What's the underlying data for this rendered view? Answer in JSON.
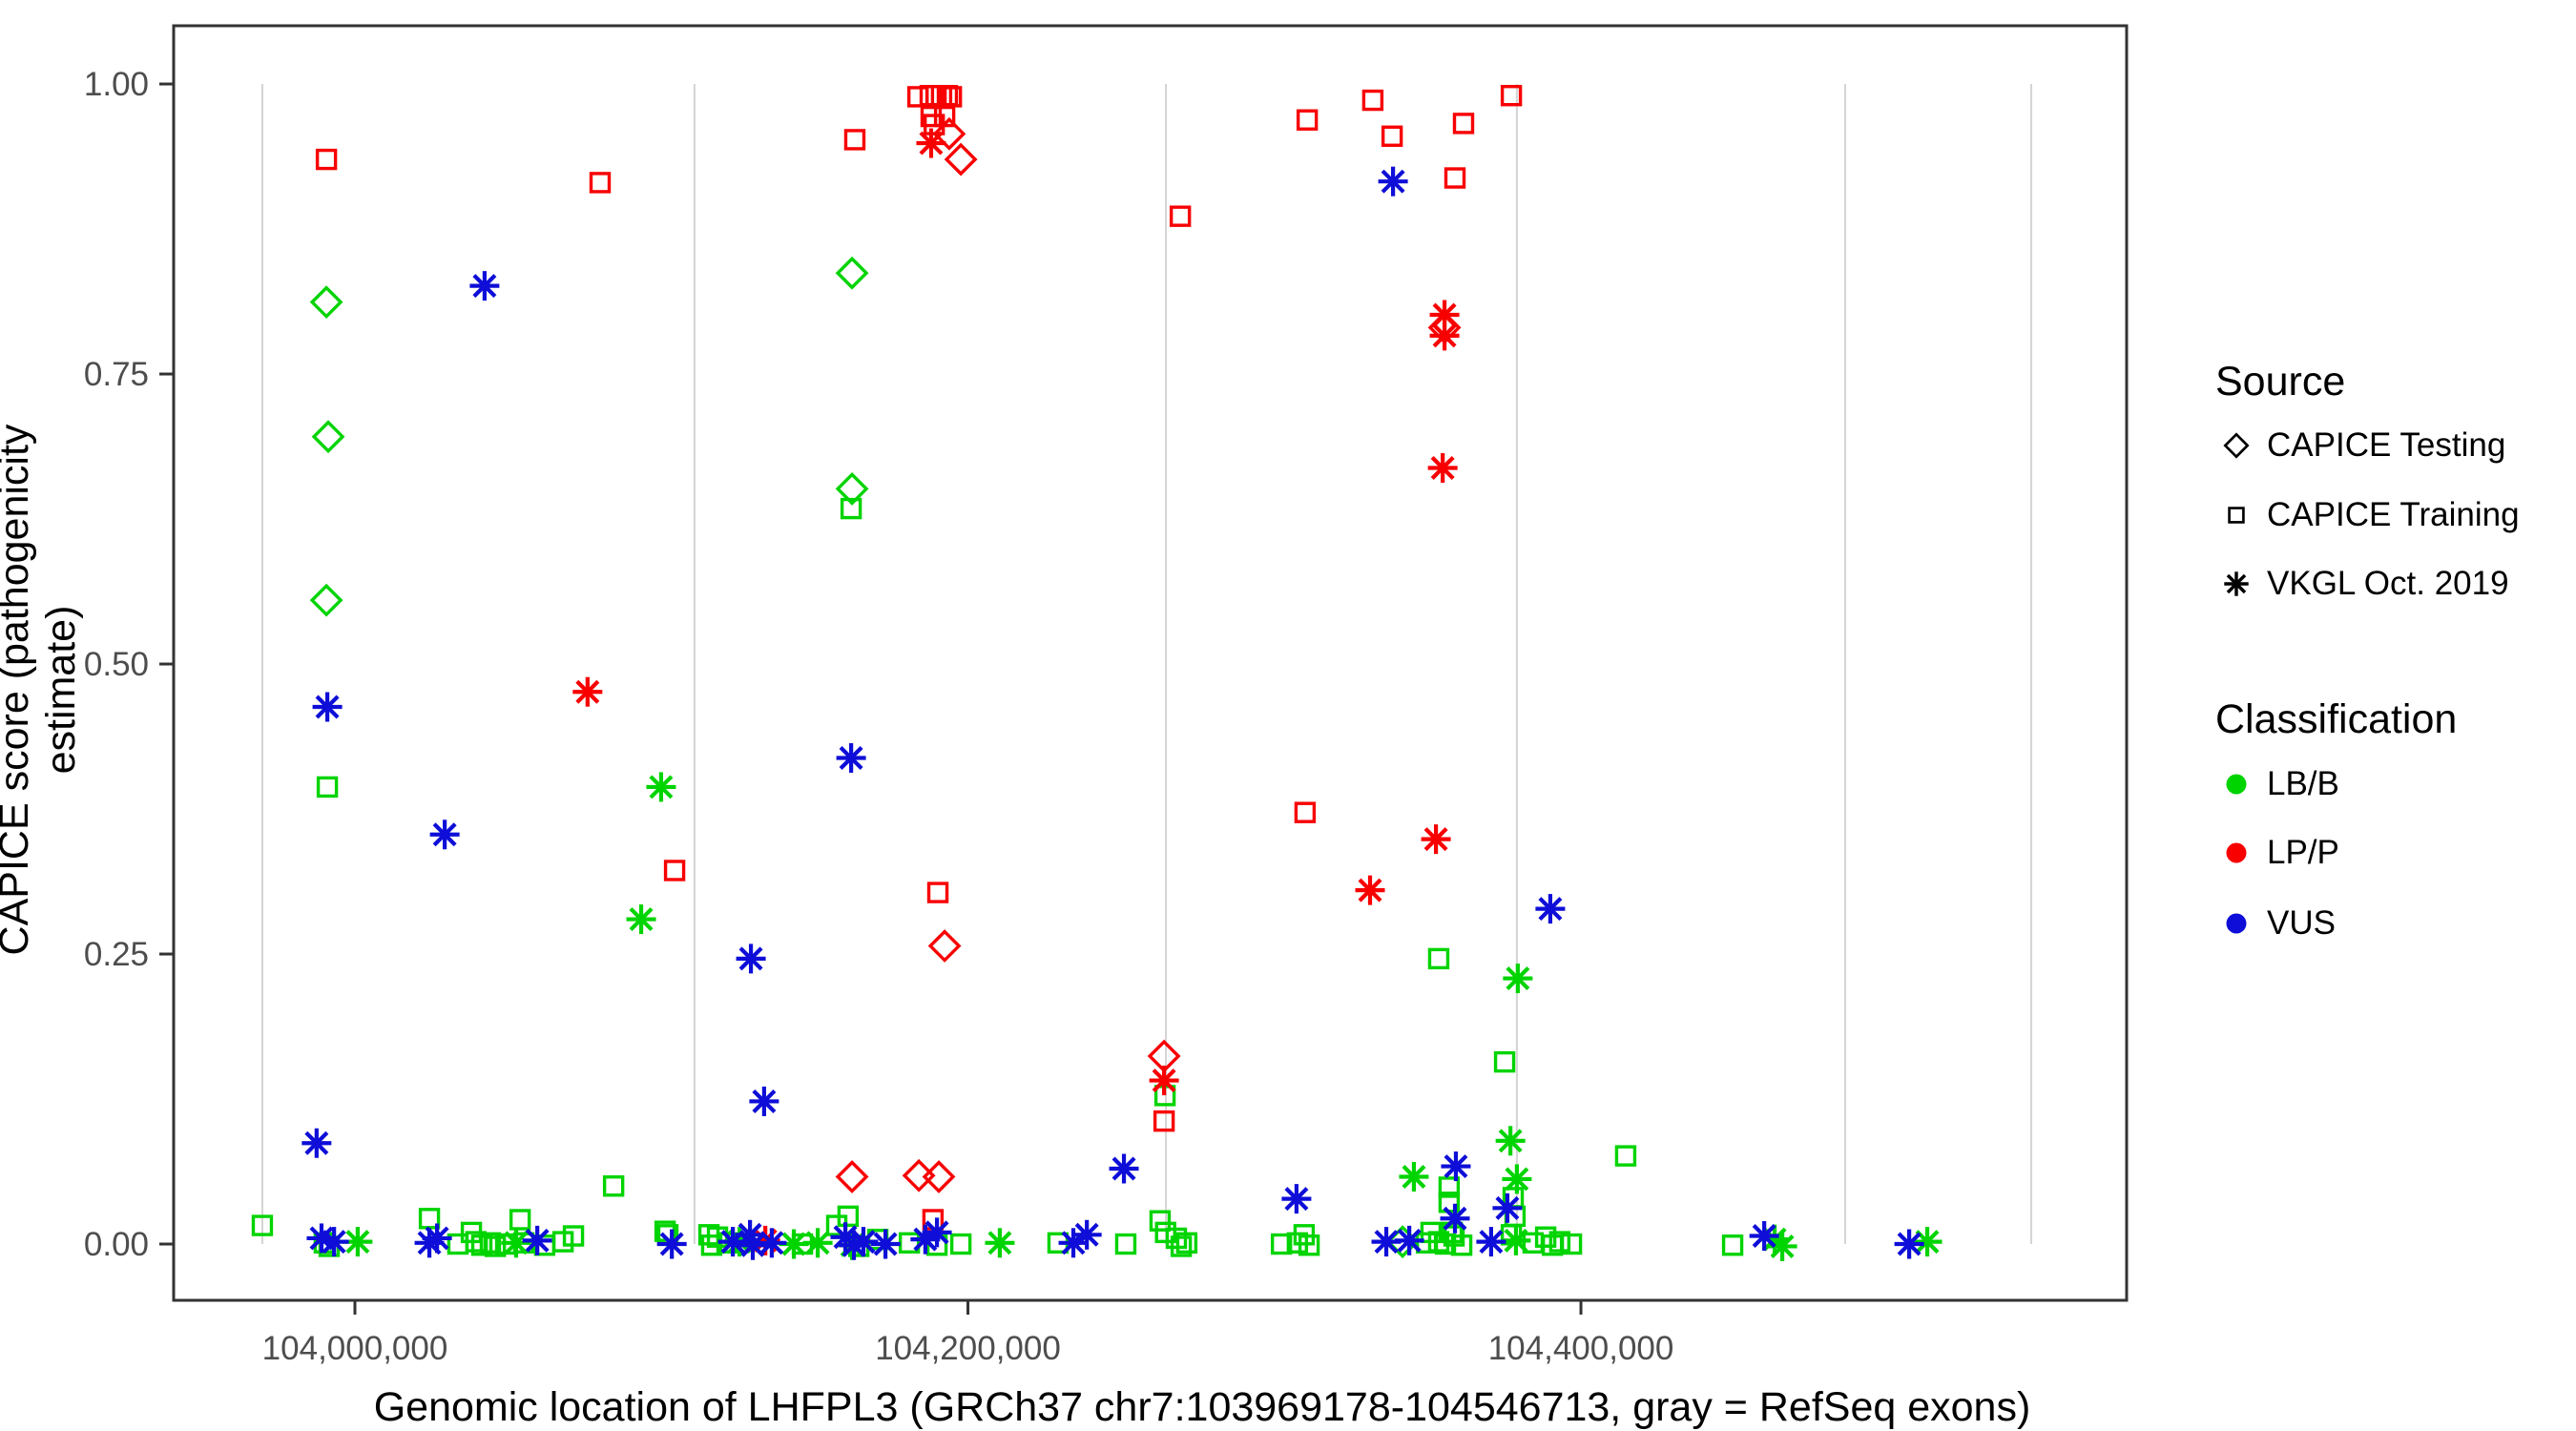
{
  "figure": {
    "background": "#ffffff",
    "text_color": "#000000",
    "tick_text_color": "#4d4d4d",
    "axis_line_color": "#333333",
    "exon_line_color": "#d4d4d4"
  },
  "legend": {
    "source": {
      "title": "Source",
      "items": [
        {
          "label": "CAPICE Testing",
          "icon": "diamond-icon",
          "marker": "testing"
        },
        {
          "label": "CAPICE Training",
          "icon": "square-icon",
          "marker": "training"
        },
        {
          "label": "VKGL Oct. 2019",
          "icon": "asterisk-icon",
          "marker": "vkgl"
        }
      ]
    },
    "classification": {
      "title": "Classification",
      "items": [
        {
          "label": "LB/B",
          "icon": "circle-icon",
          "color": "#00d400"
        },
        {
          "label": "LP/P",
          "icon": "circle-icon",
          "color": "#f80000"
        },
        {
          "label": "VUS",
          "icon": "circle-icon",
          "color": "#0e0ed8"
        }
      ]
    }
  },
  "chart_data": {
    "type": "scatter",
    "title": "",
    "xlabel": "Genomic location of LHFPL3 (GRCh37 chr7:103969178-104546713, gray = RefSeq exons)",
    "ylabel": "CAPICE score (pathogenicity estimate)",
    "xlim": [
      103940856,
      104578040
    ],
    "ylim": [
      -0.0485,
      1.0502
    ],
    "x_ticks": [
      {
        "value": 104000000,
        "label": "104,000,000"
      },
      {
        "value": 104200000,
        "label": "104,200,000"
      },
      {
        "value": 104400000,
        "label": "104,400,000"
      }
    ],
    "y_ticks": [
      {
        "value": 0.0,
        "label": "0.00"
      },
      {
        "value": 0.25,
        "label": "0.25"
      },
      {
        "value": 0.5,
        "label": "0.50"
      },
      {
        "value": 0.75,
        "label": "0.75"
      },
      {
        "value": 1.0,
        "label": "1.00"
      }
    ],
    "grid": false,
    "legend_position": "right",
    "refseq_exon_lines_bp": [
      103969800,
      104110800,
      104264600,
      104379100,
      104486200,
      104546900
    ],
    "colors": {
      "LB/B": "#00d400",
      "LP/P": "#f80000",
      "VUS": "#0e0ed8"
    },
    "point_schema": [
      "position_bp",
      "capice_score",
      "source(T=CAPICE Testing diamond, R=CAPICE Training square, V=VKGL Oct. 2019 asterisk)",
      "classification(B=LB/B, P=LP/P, U=VUS)"
    ],
    "points": [
      [
        103969800,
        0.016,
        "R",
        "B"
      ],
      [
        103990000,
        0.001,
        "R",
        "B"
      ],
      [
        103991600,
        -0.002,
        "R",
        "B"
      ],
      [
        103991000,
        0.394,
        "R",
        "B"
      ],
      [
        104024300,
        0.022,
        "R",
        "B"
      ],
      [
        104033600,
        0.0,
        "R",
        "B"
      ],
      [
        104038000,
        0.01,
        "R",
        "B"
      ],
      [
        104039500,
        0.002,
        "R",
        "B"
      ],
      [
        104041400,
        -0.001,
        "R",
        "B"
      ],
      [
        104044200,
        0.001,
        "R",
        "B"
      ],
      [
        104045800,
        -0.002,
        "R",
        "B"
      ],
      [
        104049200,
        0.0,
        "R",
        "B"
      ],
      [
        104053900,
        0.021,
        "R",
        "B"
      ],
      [
        104055100,
        0.001,
        "R",
        "B"
      ],
      [
        104061900,
        -0.001,
        "R",
        "B"
      ],
      [
        104067900,
        0.002,
        "R",
        "B"
      ],
      [
        104071300,
        0.007,
        "R",
        "B"
      ],
      [
        104084400,
        0.05,
        "R",
        "B"
      ],
      [
        104101200,
        0.011,
        "R",
        "B"
      ],
      [
        104102100,
        0.008,
        "R",
        "B"
      ],
      [
        104115500,
        0.008,
        "R",
        "B"
      ],
      [
        104116400,
        -0.001,
        "R",
        "B"
      ],
      [
        104118300,
        0.006,
        "R",
        "B"
      ],
      [
        104121400,
        0.001,
        "R",
        "B"
      ],
      [
        104146000,
        0.0,
        "R",
        "B"
      ],
      [
        104157200,
        0.016,
        "R",
        "B"
      ],
      [
        104160900,
        0.024,
        "R",
        "B"
      ],
      [
        104161900,
        0.634,
        "R",
        "B"
      ],
      [
        104164400,
        -0.002,
        "R",
        "B"
      ],
      [
        104170600,
        0.004,
        "R",
        "B"
      ],
      [
        104180900,
        0.001,
        "R",
        "B"
      ],
      [
        104189900,
        -0.001,
        "R",
        "B"
      ],
      [
        104197700,
        0.0,
        "R",
        "B"
      ],
      [
        104229400,
        0.001,
        "R",
        "B"
      ],
      [
        104251500,
        0.0,
        "R",
        "B"
      ],
      [
        104262700,
        0.02,
        "R",
        "B"
      ],
      [
        104264300,
        0.128,
        "R",
        "B"
      ],
      [
        104264500,
        0.01,
        "R",
        "B"
      ],
      [
        104268000,
        0.005,
        "R",
        "B"
      ],
      [
        104269600,
        -0.002,
        "R",
        "B"
      ],
      [
        104271400,
        0.001,
        "R",
        "B"
      ],
      [
        104302300,
        0.0,
        "R",
        "B"
      ],
      [
        104307500,
        0.001,
        "R",
        "B"
      ],
      [
        104309700,
        0.008,
        "R",
        "B"
      ],
      [
        104311300,
        -0.001,
        "R",
        "B"
      ],
      [
        104349600,
        0.001,
        "R",
        "B"
      ],
      [
        104351100,
        0.01,
        "R",
        "B"
      ],
      [
        104353600,
        0.246,
        "R",
        "B"
      ],
      [
        104353600,
        0.002,
        "R",
        "B"
      ],
      [
        104355800,
        0.0,
        "R",
        "B"
      ],
      [
        104357000,
        0.049,
        "R",
        "B"
      ],
      [
        104357000,
        0.036,
        "R",
        "B"
      ],
      [
        104358000,
        0.01,
        "R",
        "B"
      ],
      [
        104358600,
        0.007,
        "R",
        "B"
      ],
      [
        104361100,
        -0.001,
        "R",
        "B"
      ],
      [
        104375100,
        0.157,
        "R",
        "B"
      ],
      [
        104377300,
        0.008,
        "R",
        "B"
      ],
      [
        104377900,
        0.04,
        "R",
        "B"
      ],
      [
        104378500,
        0.024,
        "R",
        "B"
      ],
      [
        104384400,
        0.001,
        "R",
        "B"
      ],
      [
        104388500,
        0.006,
        "R",
        "B"
      ],
      [
        104390700,
        -0.001,
        "R",
        "B"
      ],
      [
        104393100,
        0.002,
        "R",
        "B"
      ],
      [
        104396900,
        0.0,
        "R",
        "B"
      ],
      [
        104414600,
        0.076,
        "R",
        "B"
      ],
      [
        104449500,
        -0.001,
        "R",
        "B"
      ],
      [
        103990700,
        0.812,
        "T",
        "B"
      ],
      [
        103991300,
        0.696,
        "T",
        "B"
      ],
      [
        103990700,
        0.555,
        "T",
        "B"
      ],
      [
        104162200,
        0.837,
        "T",
        "B"
      ],
      [
        104162200,
        0.651,
        "T",
        "B"
      ],
      [
        104341800,
        0.002,
        "T",
        "B"
      ],
      [
        104000900,
        0.002,
        "V",
        "B"
      ],
      [
        104052600,
        0.001,
        "V",
        "B"
      ],
      [
        104093400,
        0.28,
        "V",
        "B"
      ],
      [
        104099900,
        0.394,
        "V",
        "B"
      ],
      [
        104125500,
        0.002,
        "V",
        "B"
      ],
      [
        104143200,
        0.0,
        "V",
        "B"
      ],
      [
        104151000,
        0.001,
        "V",
        "B"
      ],
      [
        104162200,
        -0.001,
        "V",
        "B"
      ],
      [
        104210400,
        0.001,
        "V",
        "B"
      ],
      [
        104345500,
        0.058,
        "V",
        "B"
      ],
      [
        104377000,
        0.089,
        "V",
        "B"
      ],
      [
        104378800,
        0.003,
        "V",
        "B"
      ],
      [
        104379100,
        0.056,
        "V",
        "B"
      ],
      [
        104379400,
        0.229,
        "V",
        "B"
      ],
      [
        104463200,
        0.004,
        "V",
        "B"
      ],
      [
        104465700,
        -0.002,
        "V",
        "B"
      ],
      [
        104513000,
        0.002,
        "V",
        "B"
      ],
      [
        103990700,
        0.935,
        "R",
        "P"
      ],
      [
        104080000,
        0.915,
        "R",
        "P"
      ],
      [
        104163100,
        0.952,
        "R",
        "P"
      ],
      [
        104183700,
        0.989,
        "R",
        "P"
      ],
      [
        104187700,
        0.99,
        "R",
        "P"
      ],
      [
        104189600,
        0.99,
        "R",
        "P"
      ],
      [
        104191400,
        0.99,
        "R",
        "P"
      ],
      [
        104193300,
        0.99,
        "R",
        "P"
      ],
      [
        104194600,
        0.989,
        "R",
        "P"
      ],
      [
        104188000,
        0.972,
        "R",
        "P"
      ],
      [
        104192400,
        0.972,
        "R",
        "P"
      ],
      [
        104189000,
        0.965,
        "R",
        "P"
      ],
      [
        104193900,
        0.957,
        "T",
        "P"
      ],
      [
        104188000,
        0.949,
        "V",
        "P"
      ],
      [
        104197700,
        0.935,
        "T",
        "P"
      ],
      [
        104269300,
        0.886,
        "R",
        "P"
      ],
      [
        104310700,
        0.969,
        "R",
        "P"
      ],
      [
        104332100,
        0.986,
        "R",
        "P"
      ],
      [
        104338400,
        0.955,
        "R",
        "P"
      ],
      [
        104358900,
        0.919,
        "R",
        "P"
      ],
      [
        104361700,
        0.966,
        "R",
        "P"
      ],
      [
        104377300,
        0.99,
        "R",
        "P"
      ],
      [
        104355500,
        0.801,
        "V",
        "P"
      ],
      [
        104355500,
        0.79,
        "T",
        "P"
      ],
      [
        104355500,
        0.783,
        "V",
        "P"
      ],
      [
        104354900,
        0.669,
        "V",
        "P"
      ],
      [
        104075900,
        0.476,
        "V",
        "P"
      ],
      [
        104104300,
        0.322,
        "R",
        "P"
      ],
      [
        104190200,
        0.303,
        "R",
        "P"
      ],
      [
        104192400,
        0.257,
        "T",
        "P"
      ],
      [
        104310000,
        0.372,
        "R",
        "P"
      ],
      [
        104352700,
        0.349,
        "V",
        "P"
      ],
      [
        104331200,
        0.305,
        "V",
        "P"
      ],
      [
        104264000,
        0.162,
        "T",
        "P"
      ],
      [
        104264000,
        0.141,
        "V",
        "P"
      ],
      [
        104264000,
        0.106,
        "R",
        "P"
      ],
      [
        104162200,
        0.058,
        "T",
        "P"
      ],
      [
        104184000,
        0.059,
        "T",
        "P"
      ],
      [
        104190500,
        0.058,
        "T",
        "P"
      ],
      [
        104188600,
        0.021,
        "R",
        "P"
      ],
      [
        104133900,
        0.003,
        "V",
        "P"
      ],
      [
        104042300,
        0.826,
        "V",
        "U"
      ],
      [
        104338700,
        0.916,
        "V",
        "U"
      ],
      [
        103991000,
        0.463,
        "V",
        "U"
      ],
      [
        104029300,
        0.353,
        "V",
        "U"
      ],
      [
        104161900,
        0.419,
        "V",
        "U"
      ],
      [
        104129200,
        0.246,
        "V",
        "U"
      ],
      [
        104390000,
        0.289,
        "V",
        "U"
      ],
      [
        104133500,
        0.123,
        "V",
        "U"
      ],
      [
        103987500,
        0.087,
        "V",
        "U"
      ],
      [
        104250900,
        0.065,
        "V",
        "U"
      ],
      [
        104307200,
        0.039,
        "V",
        "U"
      ],
      [
        104359200,
        0.067,
        "V",
        "U"
      ],
      [
        104358900,
        0.022,
        "V",
        "U"
      ],
      [
        104376000,
        0.031,
        "V",
        "U"
      ],
      [
        104238800,
        0.008,
        "V",
        "U"
      ],
      [
        104128900,
        0.008,
        "V",
        "U"
      ],
      [
        103989100,
        0.005,
        "V",
        "U"
      ],
      [
        103993200,
        0.002,
        "V",
        "U"
      ],
      [
        104024300,
        0.001,
        "V",
        "U"
      ],
      [
        104026800,
        0.005,
        "V",
        "U"
      ],
      [
        104059500,
        0.003,
        "V",
        "U"
      ],
      [
        104103400,
        0.0,
        "V",
        "U"
      ],
      [
        104123300,
        0.002,
        "V",
        "U"
      ],
      [
        104129800,
        -0.001,
        "V",
        "U"
      ],
      [
        104136000,
        0.001,
        "V",
        "U"
      ],
      [
        104160000,
        0.006,
        "V",
        "U"
      ],
      [
        104162800,
        -0.001,
        "V",
        "U"
      ],
      [
        104165900,
        0.002,
        "V",
        "U"
      ],
      [
        104173100,
        0.0,
        "V",
        "U"
      ],
      [
        104186100,
        0.004,
        "V",
        "U"
      ],
      [
        104189900,
        0.01,
        "V",
        "U"
      ],
      [
        104234400,
        0.001,
        "V",
        "U"
      ],
      [
        104336500,
        0.002,
        "V",
        "U"
      ],
      [
        104344000,
        0.003,
        "V",
        "U"
      ],
      [
        104370700,
        0.002,
        "V",
        "U"
      ],
      [
        104459800,
        0.007,
        "V",
        "U"
      ],
      [
        104507100,
        0.0,
        "V",
        "U"
      ]
    ]
  }
}
